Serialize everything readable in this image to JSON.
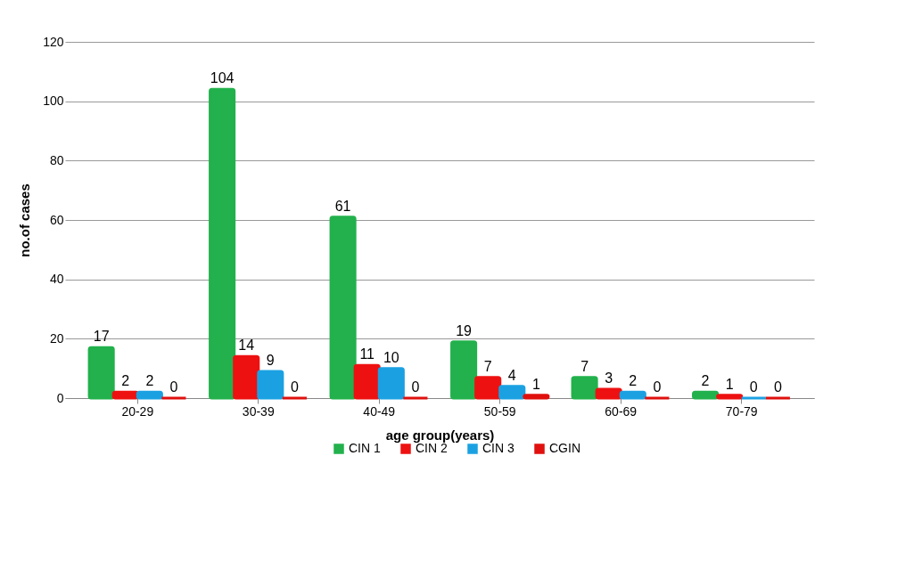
{
  "chart_data": {
    "type": "bar",
    "xlabel": "age group(years)",
    "ylabel": "no.of cases",
    "categories": [
      "20-29",
      "30-39",
      "40-49",
      "50-59",
      "60-69",
      "70-79"
    ],
    "series": [
      {
        "name": "CIN 1",
        "color": "#22b14c",
        "values": [
          17,
          104,
          61,
          19,
          7,
          2
        ]
      },
      {
        "name": "CIN 2",
        "color": "#ee1111",
        "values": [
          2,
          14,
          11,
          7,
          3,
          1
        ]
      },
      {
        "name": "CIN 3",
        "color": "#1ba1e2",
        "values": [
          2,
          9,
          10,
          4,
          2,
          0
        ]
      },
      {
        "name": "CGIN",
        "color": "#e0100e",
        "values": [
          0,
          0,
          0,
          1,
          0,
          0
        ]
      }
    ],
    "ylim": [
      0,
      120
    ],
    "yticks": [
      0,
      20,
      40,
      60,
      80,
      100,
      120
    ],
    "grid": "y",
    "legend": "bottom",
    "data_labels": true
  }
}
